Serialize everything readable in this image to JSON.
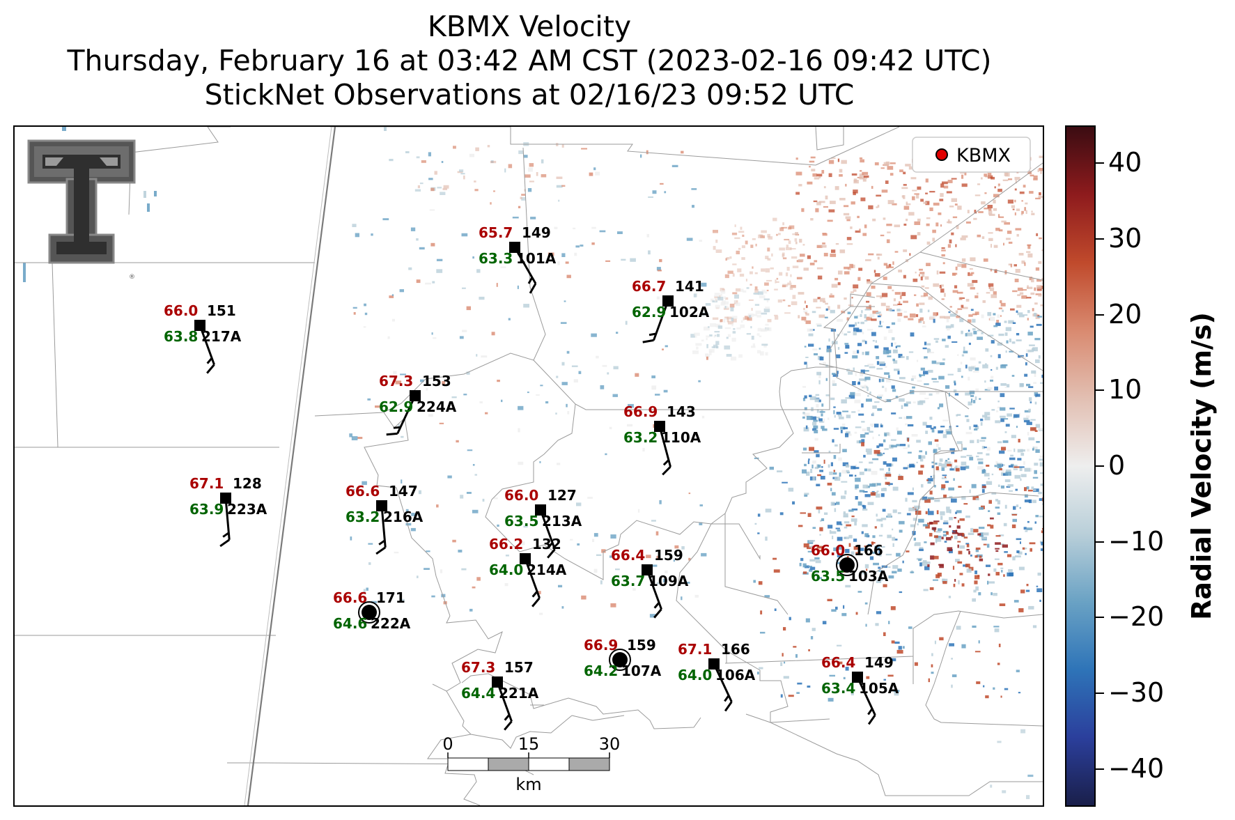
{
  "title": {
    "line1": "KBMX Velocity",
    "line2": "Thursday, February 16 at 03:42 AM CST (2023-02-16 09:42 UTC)",
    "line3": "StickNet Observations at 02/16/23 09:52 UTC"
  },
  "legend": {
    "label": "KBMX",
    "marker_color": "#e00000",
    "placement": "top-right"
  },
  "logo": {
    "name": "Texas Tech Double T",
    "mark": "®"
  },
  "colorbar": {
    "label": "Radial Velocity (m/s)",
    "min": -45,
    "max": 45,
    "ticks": [
      40,
      30,
      20,
      10,
      0,
      -10,
      -20,
      -30,
      -40
    ],
    "tick_labels": [
      "40",
      "30",
      "20",
      "10",
      "0",
      "−10",
      "−20",
      "−30",
      "−40"
    ],
    "colors": [
      "#1a1f4a",
      "#2b3f9c",
      "#2e74b8",
      "#6aa2c4",
      "#b9cfd9",
      "#eeeeee",
      "#e2bfb2",
      "#d98a70",
      "#c04a2c",
      "#8e1b1d",
      "#3b0c12"
    ]
  },
  "scale_bar": {
    "ticks": [
      "0",
      "15",
      "30"
    ],
    "unit": "km"
  },
  "stations": [
    {
      "id": "101A",
      "temp": "65.7",
      "dew": "63.3",
      "press": "149",
      "marker": "square"
    },
    {
      "id": "217A",
      "temp": "66.0",
      "dew": "63.8",
      "press": "151",
      "marker": "square"
    },
    {
      "id": "102A",
      "temp": "66.7",
      "dew": "62.9",
      "press": "141",
      "marker": "square"
    },
    {
      "id": "224A",
      "temp": "67.3",
      "dew": "62.9",
      "press": "153",
      "marker": "square"
    },
    {
      "id": "110A",
      "temp": "66.9",
      "dew": "63.2",
      "press": "143",
      "marker": "square"
    },
    {
      "id": "223A",
      "temp": "67.1",
      "dew": "63.9",
      "press": "128",
      "marker": "square"
    },
    {
      "id": "216A",
      "temp": "66.6",
      "dew": "63.2",
      "press": "147",
      "marker": "square"
    },
    {
      "id": "213A",
      "temp": "66.0",
      "dew": "63.5",
      "press": "127",
      "marker": "square"
    },
    {
      "id": "214A",
      "temp": "66.2",
      "dew": "64.0",
      "press": "132",
      "marker": "square"
    },
    {
      "id": "109A",
      "temp": "66.4",
      "dew": "63.7",
      "press": "159",
      "marker": "square"
    },
    {
      "id": "103A",
      "temp": "66.0",
      "dew": "63.5",
      "press": "166",
      "marker": "calm"
    },
    {
      "id": "222A",
      "temp": "66.6",
      "dew": "64.6",
      "press": "171",
      "marker": "calm"
    },
    {
      "id": "107A",
      "temp": "66.9",
      "dew": "64.2",
      "press": "159",
      "marker": "calm"
    },
    {
      "id": "106A",
      "temp": "67.1",
      "dew": "64.0",
      "press": "166",
      "marker": "square"
    },
    {
      "id": "221A",
      "temp": "67.3",
      "dew": "64.4",
      "press": "157",
      "marker": "square"
    },
    {
      "id": "105A",
      "temp": "66.4",
      "dew": "63.4",
      "press": "149",
      "marker": "square"
    }
  ],
  "colors": {
    "temp": "#aa0000",
    "dew": "#006400",
    "station": "#000000"
  }
}
